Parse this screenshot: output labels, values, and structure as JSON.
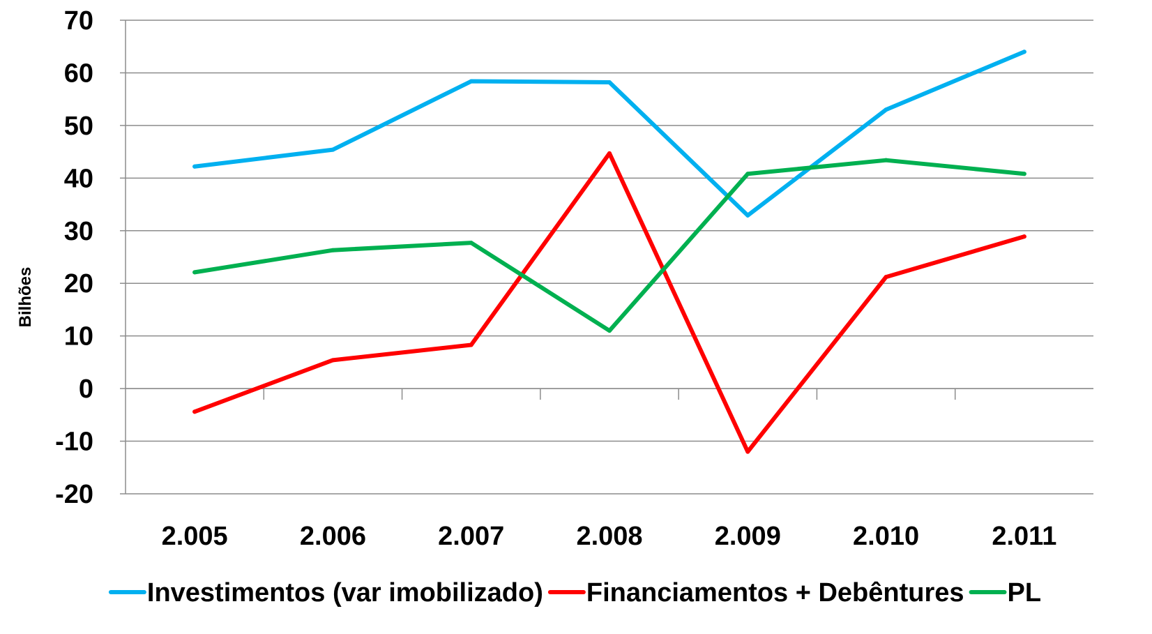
{
  "chart_data": {
    "type": "line",
    "ylabel": "Bilhões",
    "xlabel": "",
    "title": "",
    "ylim": [
      -20,
      70
    ],
    "yticks": [
      "70",
      "60",
      "50",
      "40",
      "30",
      "20",
      "10",
      "0",
      "-10",
      "-20"
    ],
    "yticks_values": [
      70,
      60,
      50,
      40,
      30,
      20,
      10,
      0,
      -10,
      -20
    ],
    "categories": [
      "2.005",
      "2.006",
      "2.007",
      "2.008",
      "2.009",
      "2.010",
      "2.011"
    ],
    "grid": true,
    "legend": "bottom",
    "series": [
      {
        "name": "Investimentos (var imobilizado)",
        "color": "#00b0f0",
        "values": [
          42.2,
          45.4,
          58.4,
          58.2,
          32.9,
          53.0,
          64.0
        ]
      },
      {
        "name": "Financiamentos + Debêntures",
        "color": "#ff0000",
        "values": [
          -4.4,
          5.4,
          8.3,
          44.7,
          -12.0,
          21.2,
          28.9
        ]
      },
      {
        "name": "PL",
        "color": "#00b050",
        "values": [
          22.1,
          26.3,
          27.7,
          11.0,
          40.8,
          43.4,
          40.8
        ]
      }
    ]
  }
}
